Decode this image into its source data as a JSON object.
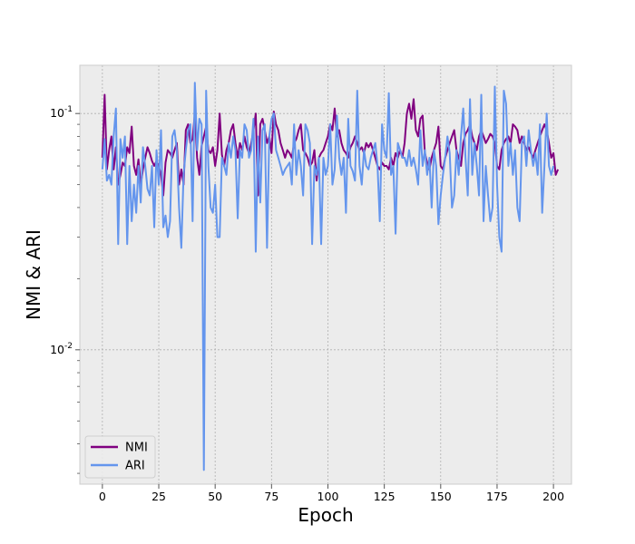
{
  "chart_data": {
    "type": "line",
    "title": "",
    "xlabel": "Epoch",
    "ylabel": "NMI & ARI",
    "xscale": "linear",
    "yscale": "log",
    "xlim": [
      -10,
      208
    ],
    "ylim": [
      0.0027,
      0.16
    ],
    "x_ticks": [
      0,
      25,
      50,
      75,
      100,
      125,
      150,
      175,
      200
    ],
    "x_tick_labels": [
      "0",
      "25",
      "50",
      "75",
      "100",
      "125",
      "150",
      "175",
      "200"
    ],
    "y_ticks": [
      0.01,
      0.1
    ],
    "y_tick_labels": [
      "10^-2",
      "10^-1"
    ],
    "grid": true,
    "legend_position": "lower-left",
    "background": "#ececec",
    "series": [
      {
        "name": "NMI",
        "color": "#800080",
        "values": [
          0.065,
          0.12,
          0.058,
          0.07,
          0.08,
          0.058,
          0.072,
          0.05,
          0.055,
          0.062,
          0.06,
          0.072,
          0.068,
          0.088,
          0.06,
          0.055,
          0.064,
          0.05,
          0.058,
          0.065,
          0.072,
          0.068,
          0.063,
          0.06,
          0.063,
          0.06,
          0.055,
          0.045,
          0.062,
          0.07,
          0.068,
          0.065,
          0.07,
          0.075,
          0.05,
          0.058,
          0.05,
          0.085,
          0.09,
          0.075,
          0.078,
          0.1,
          0.065,
          0.055,
          0.073,
          0.08,
          0.088,
          0.07,
          0.068,
          0.072,
          0.06,
          0.07,
          0.1,
          0.067,
          0.06,
          0.07,
          0.075,
          0.085,
          0.09,
          0.075,
          0.065,
          0.075,
          0.07,
          0.08,
          0.072,
          0.068,
          0.075,
          0.085,
          0.1,
          0.045,
          0.09,
          0.095,
          0.085,
          0.075,
          0.08,
          0.068,
          0.102,
          0.09,
          0.085,
          0.075,
          0.07,
          0.065,
          0.07,
          0.068,
          0.065,
          0.075,
          0.078,
          0.085,
          0.09,
          0.07,
          0.068,
          0.065,
          0.06,
          0.062,
          0.07,
          0.052,
          0.065,
          0.068,
          0.07,
          0.075,
          0.08,
          0.09,
          0.085,
          0.105,
          0.08,
          0.085,
          0.075,
          0.07,
          0.068,
          0.065,
          0.072,
          0.075,
          0.08,
          0.075,
          0.07,
          0.072,
          0.068,
          0.075,
          0.072,
          0.075,
          0.07,
          0.065,
          0.06,
          0.058,
          0.062,
          0.06,
          0.06,
          0.058,
          0.065,
          0.06,
          0.068,
          0.065,
          0.07,
          0.065,
          0.075,
          0.1,
          0.11,
          0.095,
          0.115,
          0.085,
          0.08,
          0.095,
          0.098,
          0.068,
          0.062,
          0.058,
          0.065,
          0.07,
          0.075,
          0.088,
          0.06,
          0.058,
          0.065,
          0.07,
          0.075,
          0.08,
          0.085,
          0.07,
          0.065,
          0.06,
          0.075,
          0.082,
          0.085,
          0.09,
          0.08,
          0.075,
          0.07,
          0.08,
          0.085,
          0.08,
          0.075,
          0.078,
          0.082,
          0.08,
          0.075,
          0.06,
          0.058,
          0.07,
          0.075,
          0.078,
          0.08,
          0.075,
          0.09,
          0.088,
          0.085,
          0.075,
          0.08,
          0.075,
          0.07,
          0.072,
          0.068,
          0.065,
          0.07,
          0.075,
          0.08,
          0.085,
          0.09,
          0.085,
          0.075,
          0.065,
          0.068,
          0.055,
          0.058
        ]
      },
      {
        "name": "ARI",
        "color": "#6495ed",
        "values": [
          0.058,
          0.078,
          0.052,
          0.055,
          0.05,
          0.08,
          0.105,
          0.028,
          0.078,
          0.065,
          0.08,
          0.028,
          0.06,
          0.035,
          0.05,
          0.038,
          0.06,
          0.042,
          0.072,
          0.06,
          0.048,
          0.045,
          0.06,
          0.033,
          0.07,
          0.05,
          0.085,
          0.033,
          0.037,
          0.03,
          0.035,
          0.08,
          0.085,
          0.07,
          0.04,
          0.027,
          0.055,
          0.07,
          0.085,
          0.09,
          0.035,
          0.135,
          0.07,
          0.095,
          0.09,
          0.0031,
          0.125,
          0.06,
          0.04,
          0.038,
          0.05,
          0.03,
          0.03,
          0.065,
          0.06,
          0.055,
          0.075,
          0.065,
          0.08,
          0.07,
          0.036,
          0.07,
          0.065,
          0.09,
          0.085,
          0.065,
          0.07,
          0.095,
          0.026,
          0.08,
          0.042,
          0.085,
          0.09,
          0.027,
          0.08,
          0.095,
          0.1,
          0.07,
          0.065,
          0.06,
          0.055,
          0.058,
          0.06,
          0.062,
          0.05,
          0.09,
          0.055,
          0.07,
          0.06,
          0.045,
          0.09,
          0.085,
          0.075,
          0.028,
          0.06,
          0.055,
          0.065,
          0.028,
          0.065,
          0.055,
          0.06,
          0.09,
          0.05,
          0.058,
          0.098,
          0.065,
          0.055,
          0.065,
          0.038,
          0.095,
          0.06,
          0.057,
          0.052,
          0.125,
          0.06,
          0.05,
          0.07,
          0.06,
          0.058,
          0.065,
          0.07,
          0.075,
          0.06,
          0.035,
          0.09,
          0.07,
          0.065,
          0.122,
          0.055,
          0.06,
          0.031,
          0.075,
          0.07,
          0.065,
          0.065,
          0.06,
          0.07,
          0.06,
          0.065,
          0.058,
          0.05,
          0.085,
          0.06,
          0.07,
          0.055,
          0.065,
          0.04,
          0.07,
          0.06,
          0.034,
          0.045,
          0.055,
          0.065,
          0.08,
          0.068,
          0.04,
          0.045,
          0.07,
          0.055,
          0.08,
          0.105,
          0.065,
          0.045,
          0.115,
          0.055,
          0.075,
          0.06,
          0.045,
          0.12,
          0.035,
          0.06,
          0.045,
          0.035,
          0.04,
          0.13,
          0.05,
          0.03,
          0.026,
          0.125,
          0.11,
          0.06,
          0.075,
          0.055,
          0.07,
          0.04,
          0.035,
          0.075,
          0.08,
          0.06,
          0.085,
          0.07,
          0.06,
          0.068,
          0.055,
          0.09,
          0.038,
          0.06,
          0.1,
          0.06,
          0.055,
          0.06
        ]
      }
    ]
  }
}
